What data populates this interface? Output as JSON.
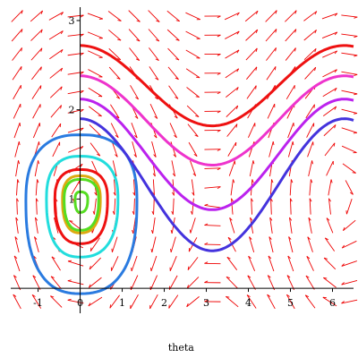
{
  "chart_data": {
    "type": "line",
    "xlabel": "theta",
    "ylabel": "",
    "xlim": [
      -1.65,
      6.5
    ],
    "ylim": [
      -0.28,
      3.15
    ],
    "grid": false,
    "x_ticks": [
      -1,
      0,
      1,
      2,
      3,
      4,
      5,
      6
    ],
    "y_ticks": [
      1,
      2,
      3
    ],
    "direction_field": {
      "color": "#ee0000",
      "description": "slope field of a pendulum-like system",
      "x_range": [
        -1.5,
        6.4
      ],
      "y_range": [
        -0.15,
        3.05
      ],
      "nx": 18,
      "ny": 16
    },
    "closed_orbits": [
      {
        "color": "#2a7be0",
        "center": [
          0,
          0.98
        ],
        "x": [
          -1.29,
          1.35
        ],
        "y": [
          -0.06,
          1.72
        ]
      },
      {
        "color": "#22dddd",
        "center": [
          0,
          1.0
        ],
        "x": [
          -0.8,
          0.9
        ],
        "y": [
          0.35,
          1.48
        ]
      },
      {
        "color": "#ee1111",
        "center": [
          0,
          1.0
        ],
        "x": [
          -0.6,
          0.65
        ],
        "y": [
          0.5,
          1.33
        ]
      },
      {
        "color": "#ddaa11",
        "center": [
          0,
          1.0
        ],
        "x": [
          -0.42,
          0.48
        ],
        "y": [
          0.62,
          1.26
        ]
      },
      {
        "color": "#55dd22",
        "center": [
          0,
          1.0
        ],
        "x": [
          -0.38,
          0.44
        ],
        "y": [
          0.65,
          1.22
        ]
      },
      {
        "color": "#55dd22",
        "center": [
          0,
          1.0
        ],
        "x": [
          -0.12,
          0.18
        ],
        "y": [
          0.85,
          1.08
        ]
      }
    ],
    "rotating_orbits": [
      {
        "color": "#ee1111",
        "x": [
          0,
          6.5
        ],
        "y_max": 2.72,
        "y_min": 1.82,
        "min_at": 3.14
      },
      {
        "color": "#ee33cc",
        "x": [
          0,
          6.5
        ],
        "y_max": 2.38,
        "y_min": 1.38,
        "min_at": 3.14
      },
      {
        "color": "#bb22ee",
        "x": [
          0,
          6.5
        ],
        "y_max": 2.12,
        "y_min": 0.88,
        "min_at": 3.14
      },
      {
        "color": "#4433dd",
        "x": [
          0,
          6.5
        ],
        "y_max": 1.9,
        "y_min": 0.42,
        "min_at": 3.14
      }
    ]
  }
}
